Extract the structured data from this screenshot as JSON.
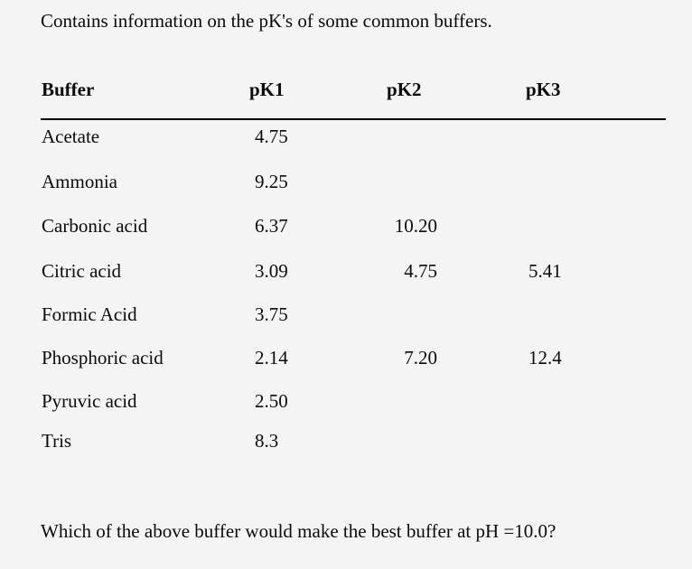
{
  "page": {
    "background_color": "#f4f4f4",
    "text_color": "#0b0b0b"
  },
  "intro": "Contains information on the pK's of some common buffers.",
  "table": {
    "headers": {
      "buffer": "Buffer",
      "pk1": "pK1",
      "pk2": "pK2",
      "pk3": "pK3"
    },
    "rows": [
      {
        "name": "Acetate",
        "pk1": "4.75",
        "pk2": "",
        "pk3": ""
      },
      {
        "name": "Ammonia",
        "pk1": "9.25",
        "pk2": "",
        "pk3": ""
      },
      {
        "name": "Carbonic acid",
        "pk1": "6.37",
        "pk2": "10.20",
        "pk3": ""
      },
      {
        "name": "Citric acid",
        "pk1": "3.09",
        "pk2": "4.75",
        "pk3": "5.41"
      },
      {
        "name": "Formic Acid",
        "pk1": "3.75",
        "pk2": "",
        "pk3": ""
      },
      {
        "name": "Phosphoric acid",
        "pk1": "2.14",
        "pk2": "7.20",
        "pk3": "12.4"
      },
      {
        "name": "Pyruvic acid",
        "pk1": "2.50",
        "pk2": "",
        "pk3": ""
      },
      {
        "name": "Tris",
        "pk1": "8.3",
        "pk2": "",
        "pk3": ""
      }
    ]
  },
  "question": "Which of the above buffer would make the best buffer at pH =10.0?"
}
